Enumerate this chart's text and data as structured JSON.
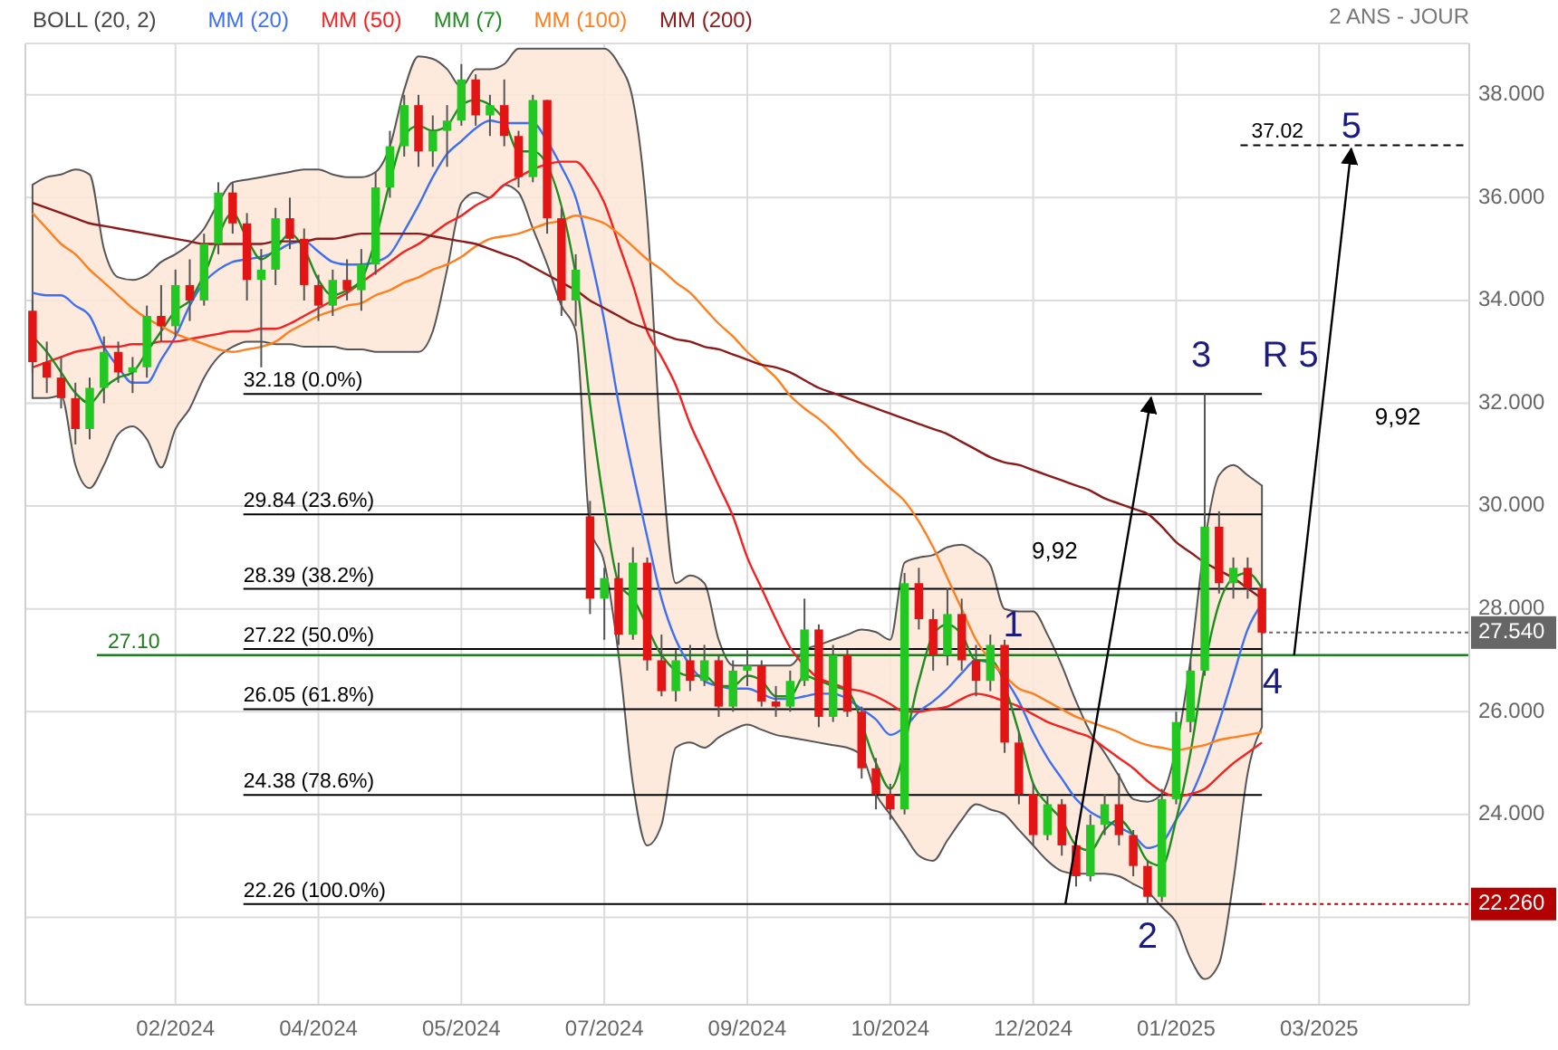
{
  "chart_data": {
    "type": "candlestick",
    "subtitle": "2 ANS - JOUR",
    "legend_title": "BOLL (20, 2)",
    "legend": "top",
    "grid": true,
    "categories": [
      null,
      null,
      null,
      null,
      null,
      null,
      null,
      null,
      null,
      null,
      "02/2024",
      null,
      null,
      null,
      null,
      null,
      null,
      null,
      null,
      null,
      "04/2024",
      null,
      null,
      null,
      null,
      null,
      null,
      null,
      null,
      null,
      "05/2024",
      null,
      null,
      null,
      null,
      null,
      null,
      null,
      null,
      null,
      "07/2024",
      null,
      null,
      null,
      null,
      null,
      null,
      null,
      null,
      null,
      "09/2024",
      null,
      null,
      null,
      null,
      null,
      null,
      null,
      null,
      null,
      "10/2024",
      null,
      null,
      null,
      null,
      null,
      null,
      null,
      null,
      null,
      "12/2024",
      null,
      null,
      null,
      null,
      null,
      null,
      null,
      null,
      null,
      "01/2025",
      null,
      null,
      null,
      null,
      null,
      null,
      null,
      null,
      null,
      "03/2025",
      null,
      null,
      null,
      null,
      null,
      null,
      null,
      null,
      null,
      null
    ],
    "ylim": [
      20.3,
      39
    ],
    "yticks": [
      {
        "value": 22,
        "label": null
      },
      {
        "value": 24,
        "label": "24.000"
      },
      {
        "value": 26,
        "label": "26.000"
      },
      {
        "value": 28,
        "label": "28.000"
      },
      {
        "value": 30,
        "label": "30.000"
      },
      {
        "value": 32,
        "label": "32.000"
      },
      {
        "value": 34,
        "label": "34.000"
      },
      {
        "value": 36,
        "label": "36.000"
      },
      {
        "value": 38,
        "label": "38.000"
      }
    ],
    "ohlc": [
      [
        33.8,
        34.0,
        32.6,
        32.8
      ],
      [
        32.8,
        33.2,
        32.2,
        32.5
      ],
      [
        32.5,
        32.9,
        31.9,
        32.1
      ],
      [
        32.1,
        32.4,
        31.2,
        31.5
      ],
      [
        31.5,
        32.5,
        31.3,
        32.3
      ],
      [
        32.3,
        33.3,
        32.0,
        33.0
      ],
      [
        33.0,
        33.2,
        32.4,
        32.6
      ],
      [
        32.6,
        32.9,
        32.2,
        32.7
      ],
      [
        32.7,
        33.9,
        32.5,
        33.7
      ],
      [
        33.7,
        34.3,
        33.2,
        33.5
      ],
      [
        33.5,
        34.6,
        33.3,
        34.3
      ],
      [
        34.3,
        34.8,
        33.6,
        34.0
      ],
      [
        34.0,
        35.3,
        33.9,
        35.1
      ],
      [
        35.1,
        36.3,
        34.9,
        36.1
      ],
      [
        36.1,
        36.3,
        35.3,
        35.5
      ],
      [
        35.5,
        35.7,
        34.0,
        34.4
      ],
      [
        34.4,
        35.0,
        32.7,
        34.6
      ],
      [
        34.6,
        35.8,
        34.3,
        35.6
      ],
      [
        35.6,
        36.0,
        35.0,
        35.2
      ],
      [
        35.2,
        35.4,
        34.0,
        34.3
      ],
      [
        34.3,
        34.5,
        33.6,
        33.9
      ],
      [
        33.9,
        34.6,
        33.7,
        34.4
      ],
      [
        34.4,
        34.8,
        34.0,
        34.2
      ],
      [
        34.2,
        35.0,
        33.8,
        34.7
      ],
      [
        34.7,
        36.5,
        34.5,
        36.2
      ],
      [
        36.2,
        37.3,
        36.0,
        37.0
      ],
      [
        37.0,
        38.0,
        36.8,
        37.8
      ],
      [
        37.8,
        38.0,
        36.6,
        36.9
      ],
      [
        36.9,
        37.6,
        36.6,
        37.3
      ],
      [
        37.3,
        37.8,
        36.6,
        37.5
      ],
      [
        37.5,
        38.6,
        37.4,
        38.3
      ],
      [
        38.3,
        38.4,
        37.4,
        37.6
      ],
      [
        37.6,
        38.0,
        37.2,
        37.8
      ],
      [
        37.8,
        38.3,
        37.0,
        37.2
      ],
      [
        37.2,
        37.3,
        36.2,
        36.4
      ],
      [
        36.4,
        38.0,
        36.3,
        37.9
      ],
      [
        37.9,
        37.9,
        35.3,
        35.6
      ],
      [
        35.6,
        35.8,
        33.7,
        34.0
      ],
      [
        34.0,
        34.9,
        33.5,
        34.6
      ],
      [
        29.8,
        30.1,
        27.9,
        28.2
      ],
      [
        28.2,
        28.8,
        27.4,
        28.6
      ],
      [
        28.6,
        28.9,
        27.3,
        27.5
      ],
      [
        27.5,
        29.2,
        27.4,
        28.9
      ],
      [
        28.9,
        29.0,
        26.8,
        27.0
      ],
      [
        27.0,
        27.5,
        26.3,
        26.4
      ],
      [
        26.4,
        27.2,
        26.2,
        27.0
      ],
      [
        27.0,
        27.3,
        26.4,
        26.6
      ],
      [
        26.6,
        27.3,
        26.5,
        27.0
      ],
      [
        27.0,
        27.1,
        25.9,
        26.1
      ],
      [
        26.1,
        27.0,
        26.0,
        26.8
      ],
      [
        26.8,
        27.2,
        26.5,
        26.9
      ],
      [
        26.9,
        27.0,
        26.1,
        26.2
      ],
      [
        26.2,
        26.5,
        25.9,
        26.1
      ],
      [
        26.1,
        26.8,
        26.0,
        26.6
      ],
      [
        26.6,
        28.2,
        26.5,
        27.6
      ],
      [
        27.6,
        27.7,
        25.7,
        25.9
      ],
      [
        25.9,
        27.3,
        25.8,
        27.1
      ],
      [
        27.1,
        27.2,
        25.9,
        26.0
      ],
      [
        26.0,
        26.1,
        24.7,
        24.9
      ],
      [
        24.9,
        25.1,
        24.1,
        24.4
      ],
      [
        24.4,
        24.6,
        23.9,
        24.1
      ],
      [
        24.1,
        28.7,
        24.0,
        28.5
      ],
      [
        28.5,
        28.8,
        27.6,
        27.8
      ],
      [
        27.8,
        28.0,
        26.8,
        27.1
      ],
      [
        27.1,
        28.4,
        26.9,
        27.9
      ],
      [
        27.9,
        28.2,
        26.8,
        27.0
      ],
      [
        27.0,
        27.3,
        26.3,
        26.6
      ],
      [
        26.6,
        27.5,
        26.4,
        27.3
      ],
      [
        27.3,
        27.4,
        25.2,
        25.4
      ],
      [
        25.4,
        25.6,
        24.2,
        24.4
      ],
      [
        24.4,
        24.6,
        23.4,
        23.6
      ],
      [
        23.6,
        24.4,
        23.5,
        24.2
      ],
      [
        24.2,
        24.3,
        23.2,
        23.4
      ],
      [
        23.4,
        23.6,
        22.6,
        22.8
      ],
      [
        22.8,
        24.0,
        22.7,
        23.8
      ],
      [
        23.8,
        24.4,
        23.6,
        24.2
      ],
      [
        24.2,
        24.8,
        23.4,
        23.6
      ],
      [
        23.6,
        23.7,
        22.8,
        23.0
      ],
      [
        23.0,
        23.1,
        22.26,
        22.4
      ],
      [
        22.4,
        24.5,
        22.3,
        24.3
      ],
      [
        24.3,
        26.0,
        24.2,
        25.8
      ],
      [
        25.8,
        27.0,
        25.6,
        26.8
      ],
      [
        26.8,
        32.18,
        26.7,
        29.6
      ],
      [
        29.6,
        29.9,
        28.3,
        28.5
      ],
      [
        28.5,
        29.0,
        28.2,
        28.8
      ],
      [
        28.8,
        29.0,
        28.2,
        28.4
      ],
      [
        28.4,
        28.5,
        27.5,
        27.54
      ],
      null,
      null,
      null,
      null,
      null,
      null,
      null,
      null,
      null,
      null,
      null,
      null,
      null,
      null
    ],
    "series": [
      {
        "name": "MM (20)",
        "type": "line",
        "color": "#3d6ff5",
        "values": [
          34.15,
          34.1,
          34.1,
          33.9,
          33.7,
          33.1,
          32.7,
          32.4,
          32.4,
          32.85,
          33.3,
          33.9,
          34.35,
          34.6,
          34.75,
          34.8,
          34.85,
          34.95,
          35.1,
          35.15,
          34.95,
          34.75,
          34.7,
          34.7,
          34.75,
          34.9,
          35.35,
          35.85,
          36.4,
          36.85,
          37.1,
          37.35,
          37.5,
          37.45,
          37.45,
          37.45,
          37.1,
          36.6,
          36.0,
          34.9,
          33.6,
          32.0,
          30.65,
          29.4,
          28.2,
          27.4,
          26.9,
          26.6,
          26.5,
          26.45,
          26.45,
          26.35,
          26.25,
          26.25,
          26.3,
          26.35,
          26.35,
          26.25,
          26.05,
          25.85,
          25.55,
          25.7,
          26.0,
          26.2,
          26.45,
          26.75,
          27.0,
          26.95,
          26.65,
          26.2,
          25.6,
          25.1,
          24.7,
          24.3,
          24.05,
          23.9,
          23.75,
          23.6,
          23.35,
          23.45,
          23.9,
          24.35,
          25.0,
          25.8,
          26.7,
          27.6,
          28.1,
          null,
          null,
          null,
          null,
          null,
          null,
          null,
          null,
          null,
          null,
          null,
          null,
          null,
          null
        ],
        "upper": [
          36.25,
          36.4,
          36.45,
          36.55,
          36.45,
          35.0,
          34.45,
          34.4,
          34.5,
          34.75,
          34.9,
          35.1,
          35.4,
          35.9,
          36.3,
          36.35,
          36.4,
          36.45,
          36.5,
          36.55,
          36.55,
          36.45,
          36.4,
          36.4,
          36.5,
          37.0,
          38.1,
          38.75,
          38.7,
          38.5,
          38.15,
          38.5,
          38.5,
          38.6,
          38.9,
          38.9,
          38.9,
          38.9,
          38.9,
          38.9,
          38.9,
          38.6,
          37.9,
          35.6,
          31.0,
          28.5,
          28.65,
          28.5,
          27.4,
          26.9,
          26.9,
          26.9,
          26.9,
          26.9,
          27.2,
          27.3,
          27.4,
          27.5,
          27.6,
          27.55,
          27.4,
          28.9,
          29.0,
          29.05,
          29.2,
          29.25,
          29.1,
          28.85,
          28.0,
          27.95,
          27.95,
          27.5,
          26.9,
          26.2,
          25.6,
          25.2,
          24.75,
          24.3,
          24.25,
          24.4,
          25.3,
          27.0,
          29.3,
          30.6,
          30.8,
          30.6,
          30.4,
          null,
          null,
          null,
          null,
          null,
          null,
          null,
          null,
          null,
          null,
          null,
          null,
          null,
          null
        ],
        "lower": [
          32.1,
          32.1,
          32.15,
          30.8,
          30.35,
          30.8,
          31.4,
          31.55,
          31.3,
          30.75,
          31.5,
          31.9,
          32.5,
          32.9,
          33.1,
          33.2,
          33.2,
          33.15,
          33.15,
          33.1,
          33.1,
          33.1,
          33.05,
          33.05,
          33.0,
          33.0,
          33.0,
          33.0,
          33.4,
          34.6,
          35.9,
          36.1,
          36.0,
          36.25,
          36.1,
          35.4,
          34.7,
          33.9,
          33.4,
          29.6,
          28.9,
          27.1,
          24.6,
          23.4,
          23.8,
          25.3,
          25.4,
          25.3,
          25.5,
          25.65,
          25.75,
          25.65,
          25.55,
          25.5,
          25.45,
          25.4,
          25.35,
          25.3,
          25.15,
          24.4,
          24.0,
          23.6,
          23.2,
          23.1,
          23.5,
          23.9,
          24.2,
          24.1,
          24.0,
          23.7,
          23.4,
          23.1,
          22.9,
          22.85,
          22.85,
          22.85,
          22.8,
          22.65,
          22.5,
          22.2,
          21.9,
          21.2,
          20.8,
          21.1,
          22.7,
          24.8,
          25.7,
          null,
          null,
          null,
          null,
          null,
          null,
          null,
          null,
          null,
          null,
          null,
          null,
          null,
          null
        ]
      },
      {
        "name": "MM (50)",
        "type": "line",
        "color": "#f52020",
        "values": [
          32.7,
          32.8,
          32.9,
          33.0,
          33.05,
          33.1,
          33.1,
          33.15,
          33.15,
          33.2,
          33.2,
          33.25,
          33.3,
          33.35,
          33.4,
          33.4,
          33.45,
          33.45,
          33.55,
          33.7,
          33.85,
          34.0,
          34.15,
          34.35,
          34.55,
          34.75,
          34.95,
          35.1,
          35.3,
          35.5,
          35.65,
          35.85,
          36.0,
          36.25,
          36.4,
          36.55,
          36.65,
          36.7,
          36.7,
          36.4,
          35.9,
          35.1,
          34.3,
          33.4,
          32.9,
          32.35,
          31.6,
          31.0,
          30.4,
          29.8,
          29.0,
          28.4,
          27.8,
          27.25,
          26.9,
          26.65,
          26.55,
          26.45,
          26.4,
          26.3,
          26.15,
          26.0,
          26.0,
          26.05,
          26.1,
          26.25,
          26.35,
          26.3,
          26.2,
          26.1,
          25.95,
          25.8,
          25.7,
          25.6,
          25.5,
          25.3,
          25.1,
          24.9,
          24.65,
          24.45,
          24.35,
          24.4,
          24.5,
          24.75,
          25.0,
          25.2,
          25.4,
          null,
          null,
          null,
          null,
          null,
          null,
          null,
          null,
          null,
          null,
          null,
          null,
          null,
          null
        ]
      },
      {
        "name": "MM (7)",
        "type": "line",
        "color": "#1e8c1e",
        "values": [
          33.3,
          33.0,
          32.6,
          32.2,
          32.0,
          32.3,
          32.5,
          32.6,
          33.0,
          33.4,
          33.8,
          34.0,
          34.5,
          null,
          35.7,
          35.2,
          34.8,
          35.0,
          35.3,
          35.0,
          34.4,
          34.1,
          34.2,
          34.4,
          35.2,
          36.3,
          37.2,
          37.4,
          37.3,
          37.4,
          37.8,
          37.9,
          37.8,
          37.5,
          36.9,
          36.9,
          null,
          null,
          34.5,
          32.0,
          30.0,
          28.5,
          28.2,
          null,
          27.1,
          26.8,
          26.7,
          26.7,
          26.5,
          26.5,
          26.7,
          26.6,
          26.3,
          26.3,
          26.7,
          26.6,
          26.5,
          26.4,
          null,
          25.0,
          24.5,
          null,
          26.6,
          27.5,
          27.7,
          27.5,
          27.0,
          27.0,
          null,
          25.6,
          24.6,
          24.2,
          23.9,
          23.4,
          23.3,
          23.7,
          23.9,
          23.6,
          23.1,
          23.0,
          23.9,
          25.2,
          26.9,
          28.1,
          28.6,
          28.7,
          28.4,
          null,
          null,
          null,
          null,
          null,
          null,
          null,
          null,
          null,
          null,
          null,
          null,
          null,
          null
        ]
      },
      {
        "name": "MM (100)",
        "type": "line",
        "color": "#ff7f1e",
        "values": [
          35.7,
          35.4,
          35.1,
          34.9,
          34.6,
          34.35,
          34.1,
          33.85,
          33.65,
          33.5,
          33.35,
          33.25,
          33.15,
          33.05,
          33.0,
          33.05,
          33.1,
          33.2,
          33.4,
          33.55,
          33.7,
          33.8,
          33.9,
          33.95,
          34.1,
          34.2,
          34.35,
          34.45,
          34.6,
          34.7,
          34.85,
          35.05,
          35.2,
          35.25,
          35.3,
          35.4,
          35.5,
          35.55,
          35.65,
          35.6,
          35.5,
          35.3,
          35.05,
          34.8,
          34.6,
          34.35,
          34.15,
          33.85,
          33.55,
          33.3,
          33.0,
          32.75,
          32.5,
          32.15,
          31.9,
          31.7,
          31.45,
          31.15,
          30.85,
          30.6,
          30.35,
          30.1,
          29.7,
          29.2,
          28.6,
          28.0,
          27.4,
          27.0,
          26.7,
          26.45,
          26.35,
          26.2,
          26.05,
          25.9,
          25.8,
          25.7,
          25.6,
          25.45,
          25.35,
          25.3,
          25.25,
          25.3,
          25.35,
          25.45,
          25.5,
          25.55,
          25.6,
          null,
          null,
          null,
          null,
          null,
          null,
          null,
          null,
          null,
          null,
          null,
          null,
          null,
          null
        ]
      },
      {
        "name": "MM (200)",
        "type": "line",
        "color": "#8b1a1a",
        "values": [
          35.9,
          35.8,
          35.7,
          35.6,
          35.5,
          35.45,
          35.4,
          35.35,
          35.3,
          35.25,
          35.2,
          35.15,
          35.1,
          35.1,
          35.1,
          35.1,
          35.1,
          35.15,
          35.15,
          35.15,
          35.2,
          35.2,
          35.25,
          35.3,
          35.3,
          35.3,
          35.3,
          35.3,
          35.25,
          35.2,
          35.15,
          35.1,
          35.0,
          34.9,
          34.8,
          34.65,
          34.5,
          34.35,
          34.2,
          34.0,
          33.85,
          33.7,
          33.55,
          33.45,
          33.35,
          33.25,
          33.2,
          33.1,
          33.05,
          32.95,
          32.85,
          32.75,
          32.7,
          32.6,
          32.45,
          32.3,
          32.2,
          32.1,
          32.0,
          31.9,
          31.8,
          31.7,
          31.6,
          31.5,
          31.4,
          31.25,
          31.1,
          30.95,
          30.85,
          30.8,
          30.7,
          30.6,
          30.5,
          30.4,
          30.3,
          30.15,
          30.05,
          29.95,
          29.85,
          29.6,
          29.3,
          29.1,
          28.9,
          28.75,
          28.6,
          28.4,
          28.2,
          null,
          null,
          null,
          null,
          null,
          null,
          null,
          null,
          null,
          null,
          null,
          null,
          null,
          null
        ]
      }
    ],
    "ref_lines": [
      {
        "axis": "y",
        "value": 32.18,
        "label": "32.18  (0.0%)",
        "color": "#000000"
      },
      {
        "axis": "y",
        "value": 29.84,
        "label": "29.84  (23.6%)",
        "color": "#000000"
      },
      {
        "axis": "y",
        "value": 28.39,
        "label": "28.39  (38.2%)",
        "color": "#000000"
      },
      {
        "axis": "y",
        "value": 27.22,
        "label": "27.22  (50.0%)",
        "color": "#000000"
      },
      {
        "axis": "y",
        "value": 26.05,
        "label": "26.05  (61.8%)",
        "color": "#000000"
      },
      {
        "axis": "y",
        "value": 24.38,
        "label": "24.38  (78.6%)",
        "color": "#000000"
      },
      {
        "axis": "y",
        "value": 22.26,
        "label": "22.26  (100.0%)",
        "color": "#000000"
      },
      {
        "axis": "y",
        "value": 27.1,
        "label": "27.10",
        "color": "#1e7d1e"
      },
      {
        "axis": "y",
        "value": 37.02,
        "label": "37.02",
        "color": "#000000",
        "line_style": "dashed"
      },
      {
        "axis": "y",
        "value": 27.54,
        "label": "27.540",
        "color": "#666666"
      },
      {
        "axis": "y",
        "value": 22.26,
        "label": "22.260",
        "color": "#b30000"
      }
    ],
    "annotations": [
      "1",
      "2",
      "3",
      "R 5",
      {
        "text": "4",
        "y": 27.1
      },
      "5",
      "9,92",
      "9,92"
    ]
  }
}
